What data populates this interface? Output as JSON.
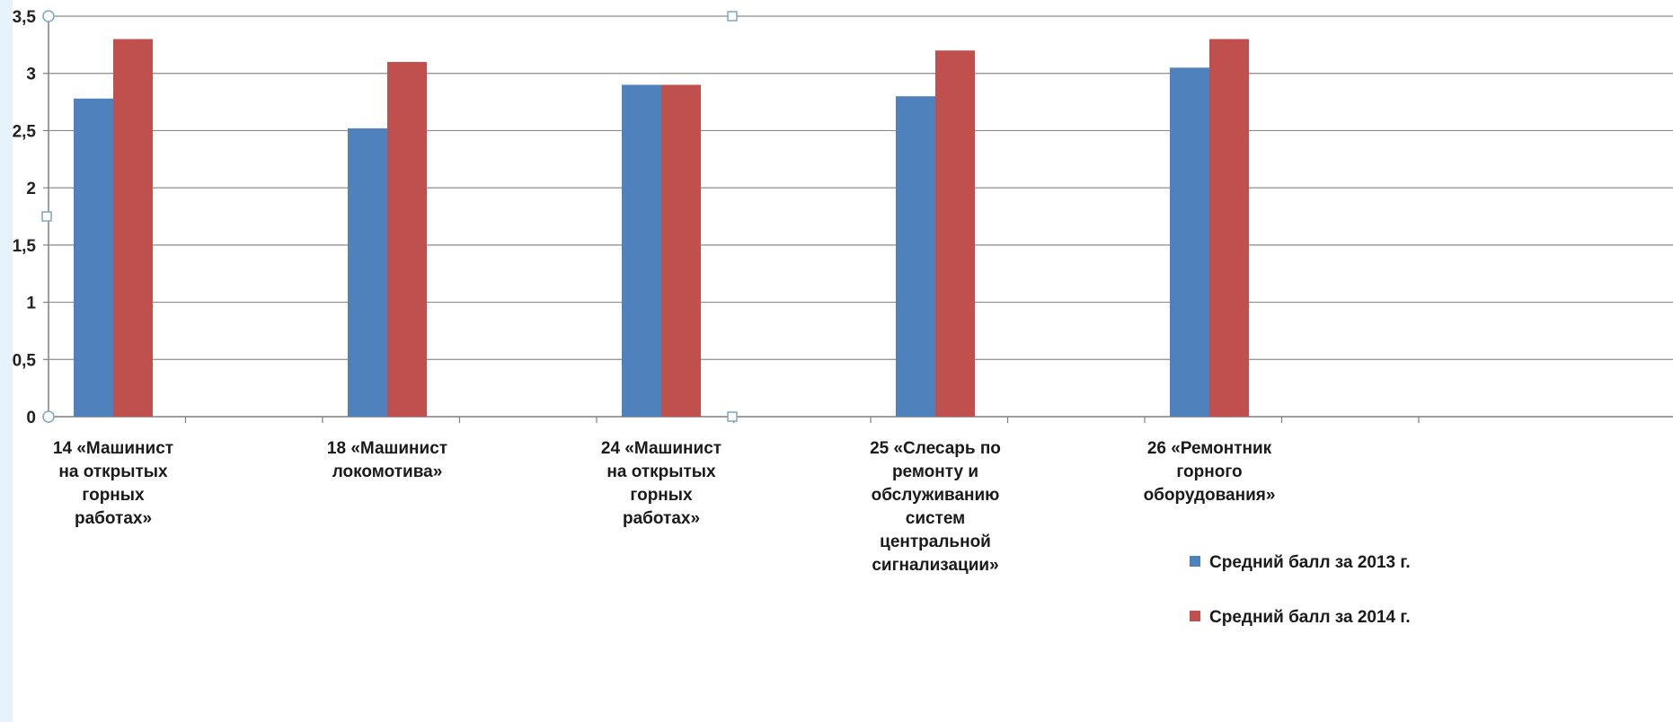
{
  "chart_data": {
    "type": "bar",
    "title": "",
    "xlabel": "",
    "ylabel": "",
    "ylim": [
      0,
      3.5
    ],
    "ytick_step": 0.5,
    "ytick_labels": [
      "0",
      "0,5",
      "1",
      "1,5",
      "2",
      "2,5",
      "3",
      "3,5"
    ],
    "grid": true,
    "legend_position": "bottom-right",
    "categories": [
      [
        "14 «Машинист",
        "на открытых",
        "горных",
        "работах»"
      ],
      [
        "18 «Машинист",
        "локомотива»"
      ],
      [
        "24 «Машинист",
        "на открытых",
        "горных",
        "работах»"
      ],
      [
        "25 «Слесарь по",
        "ремонту и",
        "обслуживанию",
        "систем",
        "центральной",
        "сигнализации»"
      ],
      [
        "26 «Ремонтник",
        "горного",
        "оборудования»"
      ]
    ],
    "series": [
      {
        "name": "Средний балл  за 2013 г.",
        "color": "#4f81bd",
        "values": [
          2.78,
          2.52,
          2.9,
          2.8,
          3.05
        ]
      },
      {
        "name": "Средний балл  за 2014 г.",
        "color": "#c0504d",
        "values": [
          3.3,
          3.1,
          2.9,
          3.2,
          3.3
        ]
      }
    ]
  }
}
